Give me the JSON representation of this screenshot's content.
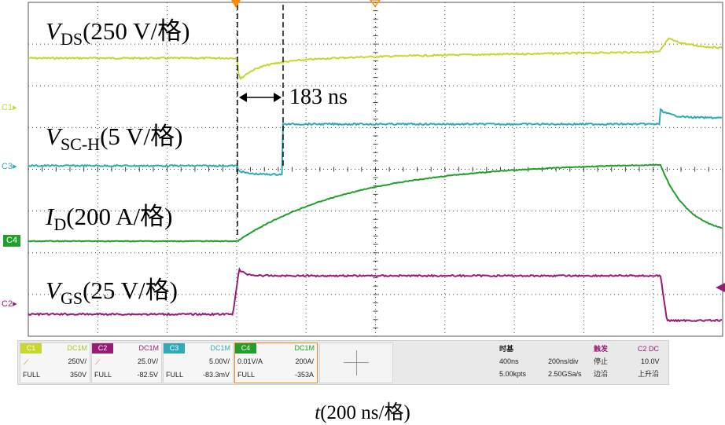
{
  "colors": {
    "ch1": "#c8d62e",
    "ch2": "#9a1a78",
    "ch3": "#2eaab8",
    "ch4": "#20a028",
    "trigger": "#ff8a00",
    "grid": "#404040"
  },
  "labels": {
    "vds_main": "V",
    "vds_sub": "DS",
    "vds_scale": "(250 V/格)",
    "vsch_main": "V",
    "vsch_sub": "SC-H",
    "vsch_scale": "(5 V/格)",
    "id_main": "I",
    "id_sub": "D",
    "id_scale": "(200 A/格)",
    "vgs_main": "V",
    "vgs_sub": "GS",
    "vgs_scale": "(25 V/格)",
    "delay": "183 ns"
  },
  "channel_markers": {
    "c1": "C1",
    "c3": "C3",
    "c4": "C4",
    "c2": "C2"
  },
  "status": {
    "ch1": {
      "tag": "C1",
      "coupling": "DC1M",
      "scale": "250V/",
      "mode": "FULL",
      "offset": "350V"
    },
    "ch2": {
      "tag": "C2",
      "coupling": "DC1M",
      "scale": "25.0V/",
      "mode": "FULL",
      "offset": "-82.5V"
    },
    "ch3": {
      "tag": "C3",
      "coupling": "DC1M",
      "scale": "5.00V/",
      "mode": "FULL",
      "offset": "-83.3mV"
    },
    "ch4": {
      "tag": "C4",
      "coupling": "DC1M",
      "probe": "0.01V/A",
      "scale": "200A/",
      "mode": "FULL",
      "offset": "-353A"
    },
    "timebase": {
      "title": "时基",
      "delay": "400ns",
      "scale": "200ns/div",
      "points": "5.00kpts",
      "rate": "2.50GSa/s"
    },
    "trigger": {
      "title": "触发",
      "source": "C2 DC",
      "state": "停止",
      "level": "10.0V",
      "type": "边沿",
      "slope": "上升沿"
    }
  },
  "xaxis": {
    "var": "t",
    "unit": "(200 ns/格)"
  }
}
